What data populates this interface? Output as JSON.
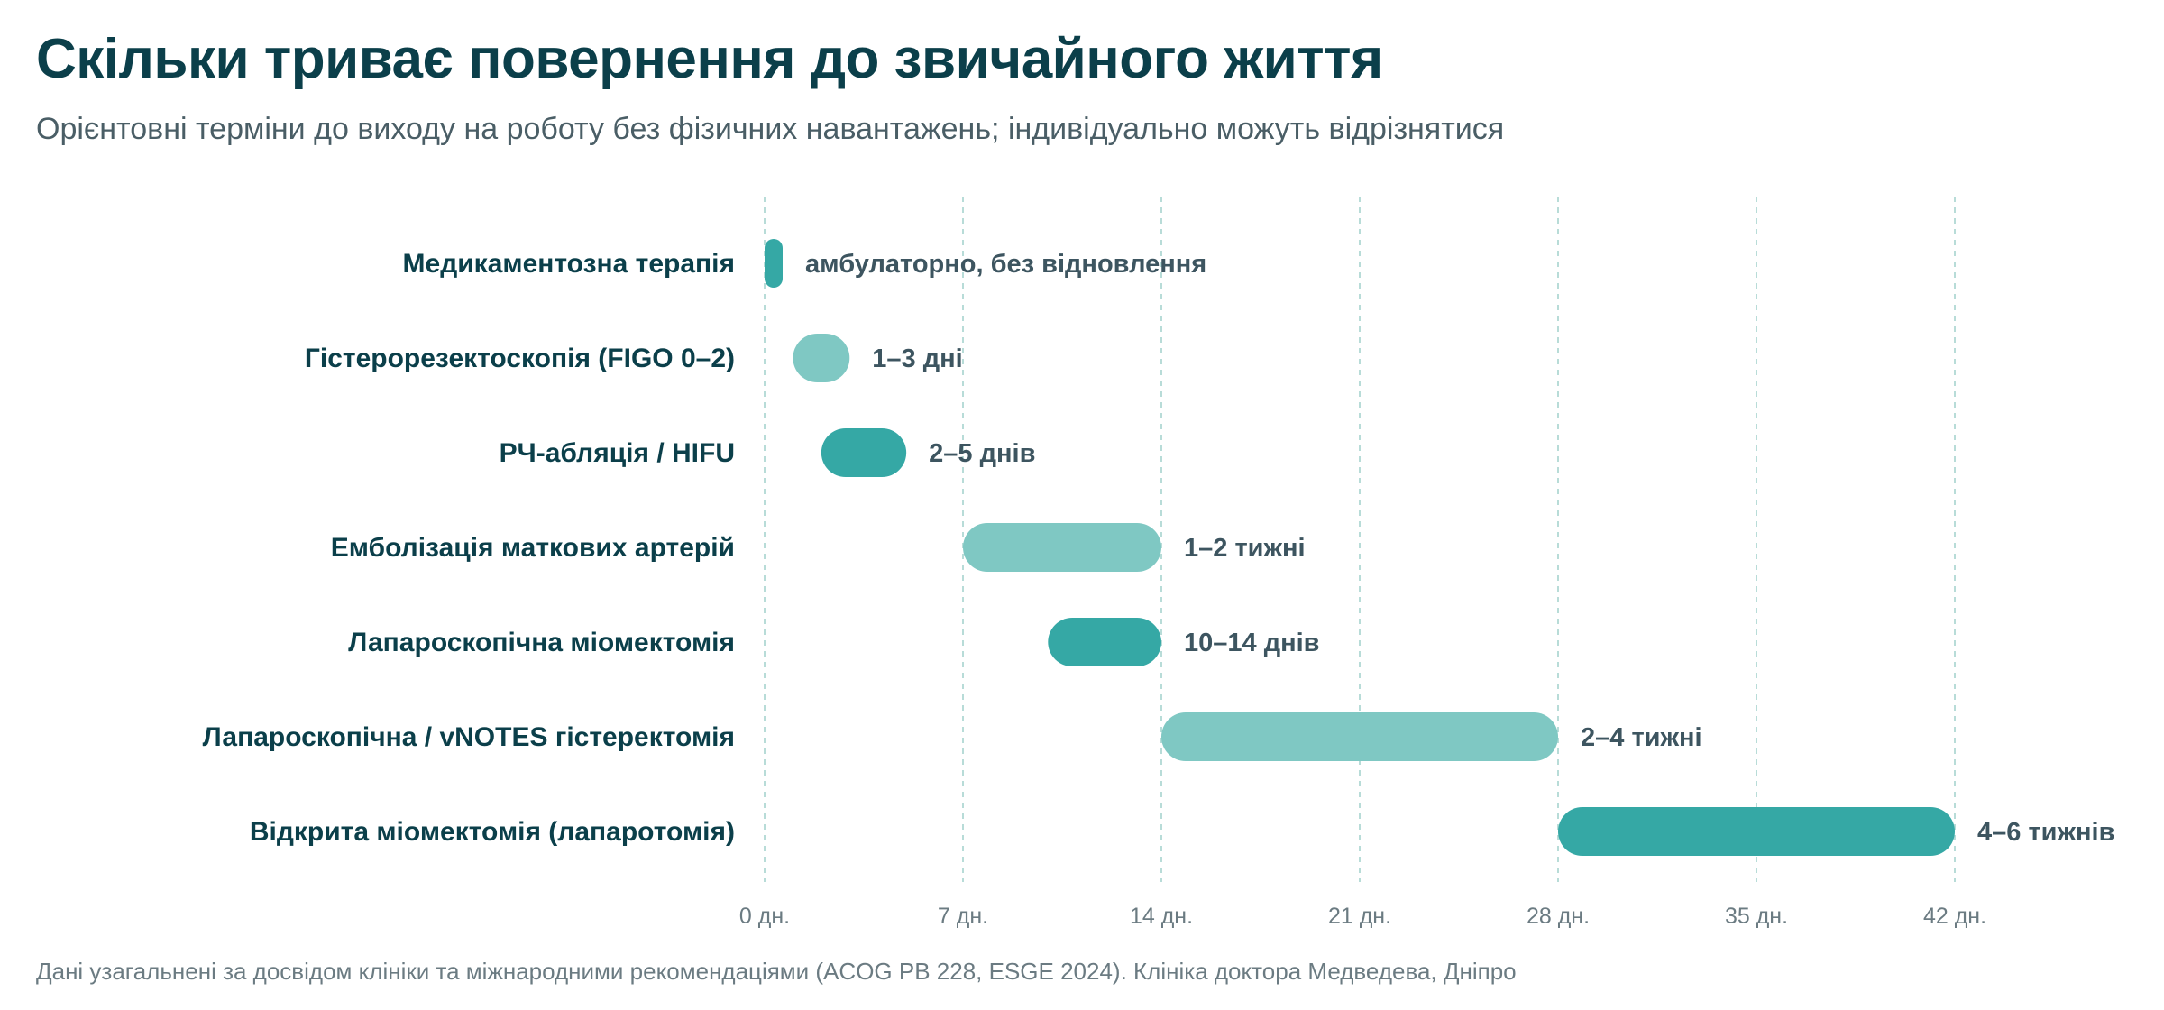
{
  "header": {
    "title": "Скільки триває повернення до звичайного життя",
    "subtitle": "Орієнтовні терміни до виходу на роботу без фізичних навантажень; індивідуально можуть відрізнятися"
  },
  "footer": {
    "note": "Дані узагальнені за досвідом клініки та міжнародними рекомендаціями (ACOG PB 228, ESGE 2024). Клініка доктора Медведева, Дніпро"
  },
  "colors": {
    "dark_bar": "#35a8a5",
    "light_bar": "#7fc8c3",
    "grid": "#b8dcd8",
    "text_dark": "#0b3f4a"
  },
  "chart_data": {
    "type": "bar",
    "orientation": "horizontal-range",
    "x_unit": "days",
    "xlim": [
      0,
      42
    ],
    "x_ticks": [
      0,
      7,
      14,
      21,
      28,
      35,
      42
    ],
    "x_tick_labels": [
      "0 дн.",
      "7 дн.",
      "14 дн.",
      "21 дн.",
      "28 дн.",
      "35 дн.",
      "42 дн."
    ],
    "grid": "vertical dashed",
    "categories": [
      "Медикаментозна терапія",
      "Гістерорезектоскопія (FIGO 0–2)",
      "РЧ-абляція / HIFU",
      "Емболізація маткових артерій",
      "Лапароскопічна міомектомія",
      "Лапароскопічна / vNOTES гістеректомія",
      "Відкрита міомектомія (лапаротомія)"
    ],
    "ranges": [
      [
        0,
        0
      ],
      [
        1,
        3
      ],
      [
        2,
        5
      ],
      [
        7,
        14
      ],
      [
        10,
        14
      ],
      [
        14,
        28
      ],
      [
        28,
        42
      ]
    ],
    "value_labels": [
      "амбулаторно, без відновлення",
      "1–3 дні",
      "2–5 днів",
      "1–2 тижні",
      "10–14 днів",
      "2–4 тижні",
      "4–6 тижнів"
    ],
    "bar_colors": [
      "dark",
      "light",
      "dark",
      "light",
      "dark",
      "light",
      "dark"
    ]
  }
}
